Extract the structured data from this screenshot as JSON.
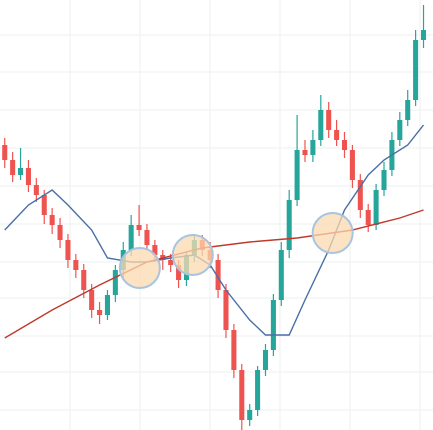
{
  "chart_data": {
    "type": "candlestick",
    "xlim": [
      -0.6,
      54.2
    ],
    "ylim": [
      0,
      430
    ],
    "up_color": "#26a69a",
    "down_color": "#ef5350",
    "open": [
      285,
      270,
      255,
      262,
      245,
      235,
      215,
      205,
      190,
      170,
      160,
      140,
      120,
      115,
      135,
      160,
      180,
      205,
      200,
      185,
      175,
      170,
      165,
      150,
      175,
      190,
      180,
      170,
      140,
      100,
      60,
      10,
      20,
      60,
      80,
      130,
      180,
      230,
      280,
      275,
      290,
      320,
      300,
      290,
      280,
      250,
      220,
      205,
      240,
      260,
      290,
      310,
      330,
      390
    ],
    "high": [
      292,
      278,
      282,
      270,
      252,
      240,
      222,
      212,
      196,
      176,
      166,
      146,
      128,
      140,
      165,
      188,
      215,
      225,
      206,
      190,
      180,
      176,
      170,
      178,
      196,
      195,
      188,
      176,
      146,
      106,
      66,
      26,
      64,
      86,
      136,
      188,
      240,
      315,
      290,
      300,
      335,
      328,
      310,
      298,
      285,
      256,
      226,
      246,
      268,
      298,
      318,
      340,
      400,
      425
    ],
    "low": [
      262,
      248,
      250,
      238,
      228,
      206,
      196,
      182,
      162,
      152,
      132,
      112,
      106,
      110,
      128,
      152,
      174,
      194,
      180,
      168,
      160,
      158,
      142,
      144,
      168,
      174,
      162,
      132,
      92,
      52,
      0,
      4,
      14,
      54,
      74,
      124,
      172,
      224,
      268,
      268,
      284,
      292,
      284,
      272,
      242,
      212,
      198,
      200,
      234,
      254,
      284,
      304,
      324,
      382
    ],
    "close": [
      270,
      255,
      262,
      245,
      235,
      215,
      205,
      190,
      170,
      160,
      140,
      120,
      115,
      135,
      160,
      180,
      205,
      200,
      185,
      175,
      170,
      165,
      150,
      175,
      190,
      180,
      170,
      140,
      100,
      60,
      10,
      20,
      60,
      80,
      130,
      180,
      230,
      280,
      275,
      290,
      320,
      300,
      290,
      280,
      250,
      220,
      205,
      240,
      260,
      290,
      310,
      330,
      390,
      400
    ],
    "series": [
      {
        "color": "#4a6fa5",
        "x": [
          0,
          3,
          6,
          8,
          11,
          13,
          16,
          18,
          21,
          24,
          26,
          28,
          31,
          33,
          36,
          38,
          41,
          43,
          46,
          48,
          51,
          53
        ],
        "values": [
          200,
          225,
          240,
          225,
          200,
          172,
          168,
          168,
          172,
          175,
          165,
          140,
          110,
          95,
          95,
          130,
          180,
          220,
          255,
          270,
          285,
          305
        ]
      },
      {
        "color": "#c0392b",
        "x": [
          0,
          6,
          12,
          18,
          25,
          31,
          37,
          44,
          50,
          53
        ],
        "values": [
          92,
          120,
          145,
          168,
          182,
          188,
          192,
          200,
          212,
          220
        ]
      }
    ],
    "highlights": {
      "color": "#fbd9b0",
      "x": [
        17.1,
        23.8,
        41.5
      ],
      "values": [
        162,
        175,
        197
      ]
    }
  }
}
